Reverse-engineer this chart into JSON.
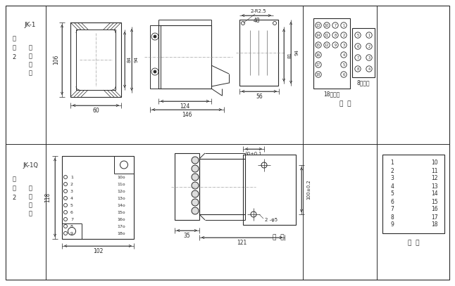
{
  "bg_color": "#ffffff",
  "lc": "#2a2a2a",
  "tc": "#2a2a2a",
  "figsize": [
    6.46,
    4.07
  ],
  "dpi": 100,
  "back_view_label": "背  视",
  "front_view_label": "正  视",
  "terminal18_label": "18点端子",
  "terminal8_label": "8点端子",
  "grid_lines": {
    "outer": [
      8,
      8,
      630,
      390
    ],
    "hdiv": 205,
    "vdiv1": 65,
    "vdiv2": 430,
    "vdiv3": 535
  }
}
